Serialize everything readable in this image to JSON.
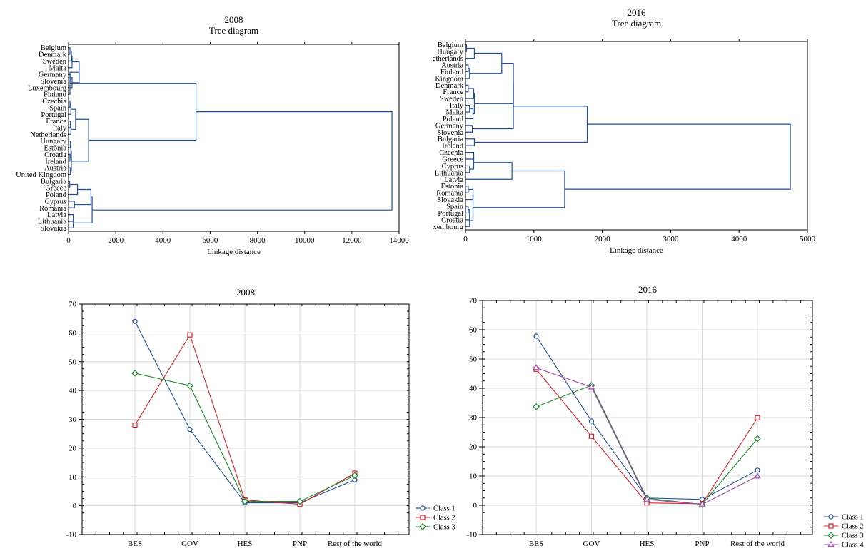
{
  "colors": {
    "class_1": "#1f4e99",
    "class_2": "#e0202a",
    "class_3": "#1a8a2a",
    "class_4": "#a347b3",
    "dendrogram": "#1f4e99"
  },
  "chart_data": [
    {
      "type": "dendrogram",
      "title": "2008",
      "subtitle": "Tree diagram",
      "xlabel": "Linkage distance",
      "xlim": [
        0,
        14000
      ],
      "xticks": [
        0,
        2000,
        4000,
        6000,
        8000,
        10000,
        12000,
        14000
      ],
      "orientation": "horizontal",
      "leaves": [
        "Belgium",
        "Denmark",
        "Sweden",
        "Malta",
        "Germany",
        "Slovenia",
        "Luxembourg",
        "Finland",
        "Czechia",
        "Spain",
        "Portugal",
        "France",
        "Italy",
        "Netherlands",
        "Hungary",
        "Estonia",
        "Croatia",
        "Ireland",
        "Austria",
        "United Kingdom",
        "Bulgaria",
        "Greece",
        "Poland",
        "Cyprus",
        "Romania",
        "Latvia",
        "Lithuania",
        "Slovakia"
      ],
      "merges": [
        {
          "a": 0,
          "b": 1,
          "h": 60
        },
        {
          "a": "m0",
          "b": 2,
          "h": 120
        },
        {
          "a": 3,
          "b": "m1",
          "h": 150
        },
        {
          "a": 4,
          "b": 5,
          "h": 100
        },
        {
          "a": "m3",
          "b": 6,
          "h": 150
        },
        {
          "a": "m2",
          "b": "m4",
          "h": 450
        },
        {
          "a": "m5",
          "b": 7,
          "h": 60
        },
        {
          "a": 8,
          "b": 9,
          "h": 60
        },
        {
          "a": "m7",
          "b": 10,
          "h": 100
        },
        {
          "a": 11,
          "b": 12,
          "h": 80
        },
        {
          "a": "m9",
          "b": 13,
          "h": 100
        },
        {
          "a": "m8",
          "b": "m10",
          "h": 300
        },
        {
          "a": 14,
          "b": 15,
          "h": 80
        },
        {
          "a": 16,
          "b": 17,
          "h": 60
        },
        {
          "a": "m12",
          "b": "m13",
          "h": 100
        },
        {
          "a": 18,
          "b": 19,
          "h": 80
        },
        {
          "a": "m14",
          "b": "m15",
          "h": 120
        },
        {
          "a": "m11",
          "b": "m16",
          "h": 850
        },
        {
          "a": "m6",
          "b": "m17",
          "h": 5400
        },
        {
          "a": 20,
          "b": 21,
          "h": 50
        },
        {
          "a": "m19",
          "b": 22,
          "h": 380
        },
        {
          "a": 23,
          "b": 24,
          "h": 250
        },
        {
          "a": "m20",
          "b": "m21",
          "h": 950
        },
        {
          "a": 25,
          "b": 26,
          "h": 200
        },
        {
          "a": "m23",
          "b": 27,
          "h": 200
        },
        {
          "a": "m22",
          "b": "m24",
          "h": 1000
        },
        {
          "a": "m18",
          "b": "m25",
          "h": 13700
        }
      ]
    },
    {
      "type": "dendrogram",
      "title": "2016",
      "subtitle": "Tree diagram",
      "xlabel": "Linkage distance",
      "xlim": [
        0,
        5000
      ],
      "xticks": [
        0,
        1000,
        2000,
        3000,
        4000,
        5000
      ],
      "orientation": "horizontal",
      "leaves": [
        "Belgium",
        "Hungary",
        "Netherlands",
        "Austria",
        "Finland",
        "United Kingdom",
        "Denmark",
        "France",
        "Sweden",
        "Italy",
        "Malta",
        "Poland",
        "Germany",
        "Slovenia",
        "Bulgaria",
        "Ireland",
        "Czechia",
        "Greece",
        "Cyprus",
        "Lithuania",
        "Latvia",
        "Estonia",
        "Romania",
        "Slovakia",
        "Spain",
        "Portugal",
        "Croatia",
        "Luxembourg"
      ],
      "merges": [
        {
          "a": 0,
          "b": 1,
          "h": 15
        },
        {
          "a": "m0",
          "b": 2,
          "h": 130
        },
        {
          "a": 3,
          "b": 4,
          "h": 40
        },
        {
          "a": "m2",
          "b": 5,
          "h": 60
        },
        {
          "a": "m1",
          "b": "m3",
          "h": 530
        },
        {
          "a": 6,
          "b": 7,
          "h": 40
        },
        {
          "a": "m5",
          "b": 8,
          "h": 120
        },
        {
          "a": 9,
          "b": 10,
          "h": 60
        },
        {
          "a": "m7",
          "b": 11,
          "h": 110
        },
        {
          "a": "m6",
          "b": "m8",
          "h": 130
        },
        {
          "a": "m4",
          "b": "m9",
          "h": 700
        },
        {
          "a": 12,
          "b": 13,
          "h": 100
        },
        {
          "a": "m10",
          "b": "m11",
          "h": 700
        },
        {
          "a": 14,
          "b": 15,
          "h": 130
        },
        {
          "a": "m12",
          "b": "m13",
          "h": 1780
        },
        {
          "a": 16,
          "b": 17,
          "h": 120
        },
        {
          "a": 18,
          "b": 19,
          "h": 60
        },
        {
          "a": "m15",
          "b": "m16",
          "h": 120
        },
        {
          "a": "m17",
          "b": 20,
          "h": 680
        },
        {
          "a": 21,
          "b": 22,
          "h": 40
        },
        {
          "a": "m19",
          "b": 23,
          "h": 110
        },
        {
          "a": 24,
          "b": 25,
          "h": 40
        },
        {
          "a": "m21",
          "b": 26,
          "h": 60
        },
        {
          "a": "m22",
          "b": 27,
          "h": 60
        },
        {
          "a": "m20",
          "b": "m23",
          "h": 110
        },
        {
          "a": "m18",
          "b": "m24",
          "h": 1450
        },
        {
          "a": "m14",
          "b": "m25",
          "h": 4750
        }
      ]
    },
    {
      "type": "line",
      "title": "2008",
      "categories": [
        "BES",
        "GOV",
        "HES",
        "PNP",
        "Rest of the world"
      ],
      "ylim": [
        -10,
        70
      ],
      "yticks": [
        -10,
        0,
        10,
        20,
        30,
        40,
        50,
        60,
        70
      ],
      "series": [
        {
          "name": "Class 1",
          "color_key": "class_1",
          "marker": "circle",
          "values": [
            64,
            26.5,
            1,
            1,
            9
          ]
        },
        {
          "name": "Class 2",
          "color_key": "class_2",
          "marker": "square",
          "values": [
            28,
            59.3,
            2,
            0.5,
            11.3
          ]
        },
        {
          "name": "Class 3",
          "color_key": "class_3",
          "marker": "diamond",
          "values": [
            46,
            41.7,
            1.5,
            1.5,
            10.5
          ]
        }
      ],
      "legend": "bottom-right"
    },
    {
      "type": "line",
      "title": "2016",
      "categories": [
        "BES",
        "GOV",
        "HES",
        "PNP",
        "Rest of the world"
      ],
      "ylim": [
        -10,
        70
      ],
      "yticks": [
        -10,
        0,
        10,
        20,
        30,
        40,
        50,
        60,
        70
      ],
      "series": [
        {
          "name": "Class 1",
          "color_key": "class_1",
          "marker": "circle",
          "values": [
            57.8,
            28.8,
            2.5,
            2,
            12
          ]
        },
        {
          "name": "Class 2",
          "color_key": "class_2",
          "marker": "square",
          "values": [
            46.5,
            23.6,
            0.8,
            0.5,
            29.9
          ]
        },
        {
          "name": "Class 3",
          "color_key": "class_3",
          "marker": "diamond",
          "values": [
            33.7,
            41,
            2.4,
            0.3,
            22.8
          ]
        },
        {
          "name": "Class 4",
          "color_key": "class_4",
          "marker": "triangle",
          "values": [
            47,
            40.4,
            2,
            0.3,
            9.9
          ]
        }
      ],
      "legend": "bottom-right"
    }
  ]
}
